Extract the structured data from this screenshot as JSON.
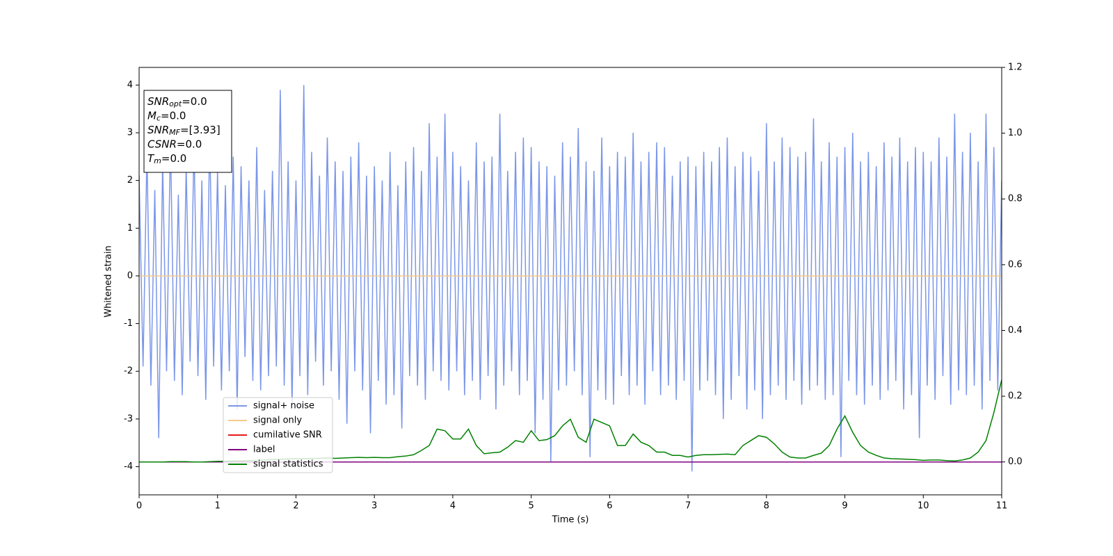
{
  "chart_data": {
    "type": "line",
    "xlabel": "Time (s)",
    "ylabel": "Whitened strain",
    "xlim": [
      0,
      11
    ],
    "ylim": [
      -4.59,
      4.37
    ],
    "y2lim": [
      -0.1,
      1.2
    ],
    "xticks": [
      0,
      1,
      2,
      3,
      4,
      5,
      6,
      7,
      8,
      9,
      10,
      11
    ],
    "yticks": [
      -4,
      -3,
      -2,
      -1,
      0,
      1,
      2,
      3,
      4
    ],
    "y2ticks": [
      {
        "value": 0,
        "label": "0.0"
      },
      {
        "value": 0.2,
        "label": "0.2"
      },
      {
        "value": 0.4,
        "label": "0.4"
      },
      {
        "value": 0.6,
        "label": "0.6"
      },
      {
        "value": 0.8,
        "label": "0.8"
      },
      {
        "value": 1.0,
        "label": "1.0"
      },
      {
        "value": 1.2,
        "label": "1.2"
      }
    ],
    "annotations": [
      {
        "base": "SNR",
        "sub": "opt",
        "text": "=0.0"
      },
      {
        "base": "M",
        "sub": "c",
        "text": "=0.0"
      },
      {
        "base": "SNR",
        "sub": "MF",
        "text": "=[3.93]"
      },
      {
        "base": "CSNR",
        "text": "=0.0"
      },
      {
        "base": "T",
        "sub": "m",
        "text": "=0.0"
      }
    ],
    "series": [
      {
        "name": "signal+ noise",
        "color": "#7b96e8",
        "x": [
          0,
          0.05,
          0.1,
          0.15,
          0.2,
          0.25,
          0.3,
          0.35,
          0.4,
          0.45,
          0.5,
          0.55,
          0.6,
          0.65,
          0.7,
          0.75,
          0.8,
          0.85,
          0.9,
          0.95,
          1,
          1.05,
          1.1,
          1.15,
          1.2,
          1.25,
          1.3,
          1.35,
          1.4,
          1.45,
          1.5,
          1.55,
          1.6,
          1.65,
          1.7,
          1.75,
          1.8,
          1.85,
          1.9,
          1.95,
          2,
          2.05,
          2.1,
          2.15,
          2.2,
          2.25,
          2.3,
          2.35,
          2.4,
          2.45,
          2.5,
          2.55,
          2.6,
          2.65,
          2.7,
          2.75,
          2.8,
          2.85,
          2.9,
          2.95,
          3,
          3.05,
          3.1,
          3.15,
          3.2,
          3.25,
          3.3,
          3.35,
          3.4,
          3.45,
          3.5,
          3.55,
          3.6,
          3.65,
          3.7,
          3.75,
          3.8,
          3.85,
          3.9,
          3.95,
          4,
          4.05,
          4.1,
          4.15,
          4.2,
          4.25,
          4.3,
          4.35,
          4.4,
          4.45,
          4.5,
          4.55,
          4.6,
          4.65,
          4.7,
          4.75,
          4.8,
          4.85,
          4.9,
          4.95,
          5,
          5.05,
          5.1,
          5.15,
          5.2,
          5.25,
          5.3,
          5.35,
          5.4,
          5.45,
          5.5,
          5.55,
          5.6,
          5.65,
          5.7,
          5.75,
          5.8,
          5.85,
          5.9,
          5.95,
          6,
          6.05,
          6.1,
          6.15,
          6.2,
          6.25,
          6.3,
          6.35,
          6.4,
          6.45,
          6.5,
          6.55,
          6.6,
          6.65,
          6.7,
          6.75,
          6.8,
          6.85,
          6.9,
          6.95,
          7,
          7.05,
          7.1,
          7.15,
          7.2,
          7.25,
          7.3,
          7.35,
          7.4,
          7.45,
          7.5,
          7.55,
          7.6,
          7.65,
          7.7,
          7.75,
          7.8,
          7.85,
          7.9,
          7.95,
          8,
          8.05,
          8.1,
          8.15,
          8.2,
          8.25,
          8.3,
          8.35,
          8.4,
          8.45,
          8.5,
          8.55,
          8.6,
          8.65,
          8.7,
          8.75,
          8.8,
          8.85,
          8.9,
          8.95,
          9,
          9.05,
          9.1,
          9.15,
          9.2,
          9.25,
          9.3,
          9.35,
          9.4,
          9.45,
          9.5,
          9.55,
          9.6,
          9.65,
          9.7,
          9.75,
          9.8,
          9.85,
          9.9,
          9.95,
          10,
          10.05,
          10.1,
          10.15,
          10.2,
          10.25,
          10.3,
          10.35,
          10.4,
          10.45,
          10.5,
          10.55,
          10.6,
          10.65,
          10.7,
          10.75,
          10.8,
          10.85,
          10.9,
          10.95,
          11
        ],
        "values": [
          2.1,
          -1.9,
          2.6,
          -2.3,
          1.8,
          -3.4,
          2.4,
          -2.0,
          2.9,
          -2.2,
          1.7,
          -2.5,
          2.3,
          -1.8,
          2.8,
          -2.1,
          2.0,
          -2.6,
          3.0,
          -1.9,
          2.2,
          -2.4,
          1.9,
          -2.0,
          2.5,
          -2.8,
          2.3,
          -1.7,
          2.0,
          -2.2,
          2.7,
          -2.4,
          1.8,
          -2.1,
          2.2,
          -1.9,
          3.9,
          -2.3,
          2.4,
          -2.7,
          2.0,
          -2.1,
          4.0,
          -2.5,
          2.6,
          -1.8,
          2.1,
          -2.3,
          2.9,
          -2.0,
          2.4,
          -2.6,
          2.2,
          -3.1,
          2.5,
          -2.0,
          2.8,
          -2.4,
          2.1,
          -3.3,
          2.3,
          -2.2,
          2.0,
          -2.7,
          2.6,
          -2.5,
          1.9,
          -3.2,
          2.4,
          -2.1,
          2.7,
          -2.3,
          2.2,
          -2.6,
          3.2,
          -2.0,
          2.5,
          -2.2,
          3.4,
          -2.4,
          2.6,
          -2.0,
          2.3,
          -2.5,
          2.0,
          -2.2,
          2.8,
          -2.6,
          2.4,
          -2.1,
          2.5,
          -2.8,
          3.4,
          -2.3,
          2.2,
          -2.0,
          2.6,
          -2.5,
          2.9,
          -2.2,
          2.7,
          -3.3,
          2.4,
          -2.6,
          2.3,
          -3.9,
          2.1,
          -2.4,
          2.8,
          -2.3,
          2.5,
          -2.0,
          3.1,
          -2.5,
          2.4,
          -3.8,
          2.2,
          -2.4,
          2.9,
          -2.6,
          2.3,
          -2.7,
          2.6,
          -2.1,
          2.5,
          -2.5,
          3.0,
          -2.3,
          2.4,
          -2.7,
          2.6,
          -2.0,
          2.8,
          -2.5,
          2.7,
          -2.3,
          2.1,
          -2.6,
          2.4,
          -2.2,
          2.5,
          -4.1,
          2.3,
          -2.4,
          2.6,
          -2.2,
          2.4,
          -2.5,
          2.7,
          -3.0,
          2.9,
          -2.6,
          2.3,
          -2.1,
          2.6,
          -2.8,
          2.5,
          -2.4,
          2.2,
          -3.0,
          3.2,
          -2.5,
          2.4,
          -2.3,
          2.9,
          -2.6,
          2.7,
          -2.2,
          2.5,
          -2.7,
          2.6,
          -2.4,
          3.3,
          -2.3,
          2.4,
          -2.6,
          2.8,
          -2.5,
          2.5,
          -3.8,
          2.7,
          -2.2,
          3.0,
          -2.5,
          2.4,
          -2.7,
          2.6,
          -2.3,
          2.3,
          -2.6,
          2.8,
          -2.4,
          2.5,
          -2.2,
          2.9,
          -2.8,
          2.4,
          -2.5,
          2.7,
          -3.4,
          2.6,
          -2.3,
          2.4,
          -2.6,
          2.9,
          -2.1,
          2.5,
          -2.7,
          3.4,
          -2.4,
          2.6,
          -2.5,
          3.0,
          -2.3,
          2.4,
          -2.8,
          3.4,
          -2.2,
          2.7,
          -2.4,
          2.0
        ]
      },
      {
        "name": "signal only",
        "color": "#f5c88a",
        "x": [
          0,
          11
        ],
        "values": [
          0,
          0
        ]
      },
      {
        "name": "cumilative SNR",
        "color": "#e41a1c",
        "axis": "y2",
        "x": [
          0,
          11
        ],
        "values": [
          0,
          0
        ]
      },
      {
        "name": "label",
        "color": "#800080",
        "axis": "y2",
        "x": [
          0,
          11
        ],
        "values": [
          0,
          0
        ]
      },
      {
        "name": "signal statistics",
        "color": "#008000",
        "axis": "y2",
        "x": [
          0,
          0.1,
          0.2,
          0.3,
          0.4,
          0.5,
          0.6,
          0.7,
          0.8,
          0.9,
          1,
          1.1,
          1.2,
          1.3,
          1.4,
          1.5,
          1.6,
          1.7,
          1.8,
          1.9,
          2,
          2.1,
          2.2,
          2.3,
          2.4,
          2.5,
          2.6,
          2.7,
          2.8,
          2.9,
          3,
          3.1,
          3.2,
          3.3,
          3.4,
          3.5,
          3.6,
          3.7,
          3.8,
          3.9,
          4,
          4.1,
          4.2,
          4.3,
          4.4,
          4.5,
          4.6,
          4.7,
          4.8,
          4.9,
          5,
          5.1,
          5.2,
          5.3,
          5.4,
          5.5,
          5.6,
          5.7,
          5.8,
          5.9,
          6,
          6.1,
          6.2,
          6.3,
          6.4,
          6.5,
          6.6,
          6.7,
          6.8,
          6.9,
          7,
          7.1,
          7.2,
          7.3,
          7.4,
          7.5,
          7.6,
          7.7,
          7.8,
          7.9,
          8,
          8.1,
          8.2,
          8.3,
          8.4,
          8.5,
          8.6,
          8.7,
          8.8,
          8.9,
          9,
          9.1,
          9.2,
          9.3,
          9.4,
          9.5,
          9.6,
          9.7,
          9.8,
          9.9,
          10,
          10.1,
          10.2,
          10.3,
          10.4,
          10.5,
          10.6,
          10.7,
          10.8,
          10.9,
          11
        ],
        "values": [
          0,
          0,
          0,
          0,
          0.001,
          0.001,
          0.001,
          0,
          0,
          0.001,
          0.002,
          0.002,
          0.003,
          0.003,
          0.004,
          0.005,
          0.006,
          0.007,
          0.008,
          0.009,
          0.01,
          0.01,
          0.011,
          0.011,
          0.012,
          0.011,
          0.012,
          0.013,
          0.014,
          0.013,
          0.014,
          0.013,
          0.013,
          0.016,
          0.018,
          0.022,
          0.035,
          0.05,
          0.1,
          0.095,
          0.07,
          0.07,
          0.1,
          0.05,
          0.025,
          0.028,
          0.03,
          0.045,
          0.065,
          0.06,
          0.095,
          0.065,
          0.068,
          0.08,
          0.11,
          0.13,
          0.075,
          0.06,
          0.13,
          0.12,
          0.11,
          0.05,
          0.05,
          0.085,
          0.06,
          0.05,
          0.03,
          0.03,
          0.02,
          0.02,
          0.015,
          0.02,
          0.022,
          0.022,
          0.023,
          0.024,
          0.022,
          0.05,
          0.065,
          0.08,
          0.075,
          0.055,
          0.03,
          0.015,
          0.012,
          0.012,
          0.02,
          0.027,
          0.05,
          0.1,
          0.14,
          0.09,
          0.05,
          0.03,
          0.02,
          0.012,
          0.01,
          0.009,
          0.008,
          0.007,
          0.005,
          0.006,
          0.006,
          0.004,
          0.003,
          0.006,
          0.012,
          0.03,
          0.065,
          0.15,
          0.25
        ]
      }
    ]
  }
}
